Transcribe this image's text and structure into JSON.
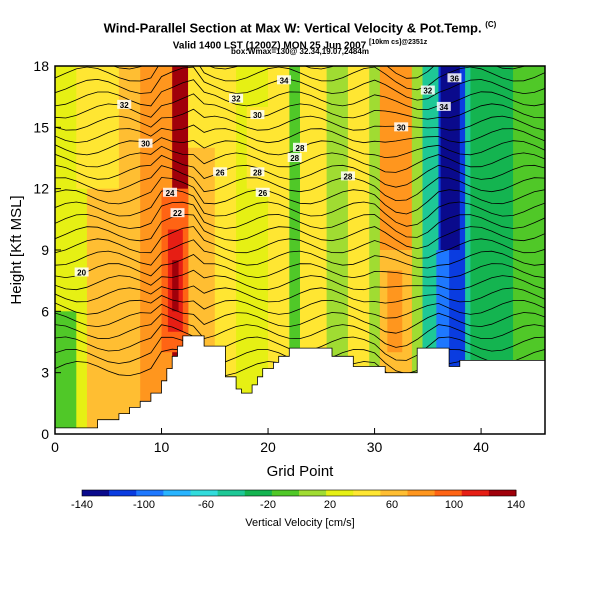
{
  "chart_data": {
    "type": "heatmap",
    "title": "Wind-Parallel Section at Max W: Vertical Velocity & Pot.Temp.",
    "title_mark": "(C)",
    "subtitle_main": "Valid 1400 LST (1200Z) MON 25 Jun 2007",
    "subtitle_small": "[10km cs]@2351z",
    "subtitle2": "box:Wmax=130@ 32.34,19.07,2484m",
    "xlabel": "Grid Point",
    "ylabel": "Height [Kft MSL]",
    "xlim": [
      0,
      46
    ],
    "ylim": [
      0,
      18
    ],
    "xticks": [
      "0",
      "10",
      "20",
      "30",
      "40"
    ],
    "yticks": [
      "0",
      "3",
      "6",
      "9",
      "12",
      "15",
      "18"
    ],
    "colorbar": {
      "label": "Vertical Velocity [cm/s]",
      "ticks": [
        "-140",
        "-100",
        "-60",
        "-20",
        "20",
        "60",
        "100",
        "140"
      ],
      "colors": [
        "#0a0a8c",
        "#0a3ce0",
        "#1e78ff",
        "#28b4ff",
        "#32dcdc",
        "#1ec896",
        "#14b450",
        "#50c828",
        "#a0dc32",
        "#e6f014",
        "#ffe632",
        "#ffbe32",
        "#ff961e",
        "#ff6414",
        "#e61e14",
        "#a0000a"
      ]
    },
    "theta_contour_labels": [
      "20",
      "22",
      "24",
      "26",
      "26",
      "28",
      "28",
      "28",
      "28",
      "30",
      "30",
      "30",
      "32",
      "32",
      "32",
      "34",
      "34",
      "36"
    ],
    "terrain_kft": [
      [
        0,
        0.3
      ],
      [
        4,
        0.3
      ],
      [
        4,
        0.7
      ],
      [
        6,
        0.7
      ],
      [
        6,
        1.0
      ],
      [
        7,
        1.0
      ],
      [
        7,
        1.3
      ],
      [
        8,
        1.3
      ],
      [
        8,
        1.6
      ],
      [
        9,
        1.6
      ],
      [
        9,
        2.0
      ],
      [
        10,
        2.0
      ],
      [
        10,
        2.6
      ],
      [
        10.5,
        2.6
      ],
      [
        10.5,
        3.2
      ],
      [
        11,
        3.2
      ],
      [
        11,
        3.8
      ],
      [
        11.5,
        3.8
      ],
      [
        11.5,
        4.3
      ],
      [
        12,
        4.3
      ],
      [
        12,
        4.8
      ],
      [
        14,
        4.8
      ],
      [
        14,
        4.3
      ],
      [
        16,
        4.3
      ],
      [
        16,
        2.8
      ],
      [
        17,
        2.8
      ],
      [
        17,
        2.2
      ],
      [
        17.5,
        2.2
      ],
      [
        17.5,
        2.0
      ],
      [
        18.5,
        2.0
      ],
      [
        18.5,
        2.4
      ],
      [
        19,
        2.4
      ],
      [
        19,
        2.8
      ],
      [
        19.5,
        2.8
      ],
      [
        19.5,
        3.2
      ],
      [
        20.5,
        3.2
      ],
      [
        20.5,
        3.5
      ],
      [
        21,
        3.5
      ],
      [
        21,
        3.8
      ],
      [
        22,
        3.8
      ],
      [
        22,
        4.2
      ],
      [
        26,
        4.2
      ],
      [
        26,
        3.8
      ],
      [
        28,
        3.8
      ],
      [
        28,
        3.3
      ],
      [
        31,
        3.3
      ],
      [
        31,
        3.0
      ],
      [
        34,
        3.0
      ],
      [
        34,
        4.2
      ],
      [
        37,
        4.2
      ],
      [
        37,
        3.3
      ],
      [
        38,
        3.3
      ],
      [
        38,
        3.6
      ],
      [
        46,
        3.6
      ],
      [
        46,
        0
      ],
      [
        0,
        0
      ]
    ],
    "columns": [
      [
        0,
        3,
        9
      ],
      [
        3,
        8,
        11
      ],
      [
        8,
        11,
        12
      ],
      [
        11,
        12.5,
        15
      ],
      [
        12.5,
        15,
        11
      ],
      [
        15,
        17,
        10
      ],
      [
        17,
        20,
        9
      ],
      [
        20,
        22,
        10
      ],
      [
        22,
        23,
        7
      ],
      [
        23,
        25.5,
        10
      ],
      [
        25.5,
        27.5,
        8
      ],
      [
        27.5,
        29.5,
        10
      ],
      [
        29.5,
        30.5,
        8
      ],
      [
        30.5,
        33.5,
        12
      ],
      [
        33.5,
        34.5,
        8
      ],
      [
        34.5,
        36,
        5
      ],
      [
        36,
        38.5,
        1
      ],
      [
        38.5,
        40,
        5
      ],
      [
        40,
        43,
        6
      ],
      [
        43,
        46,
        7
      ]
    ]
  }
}
